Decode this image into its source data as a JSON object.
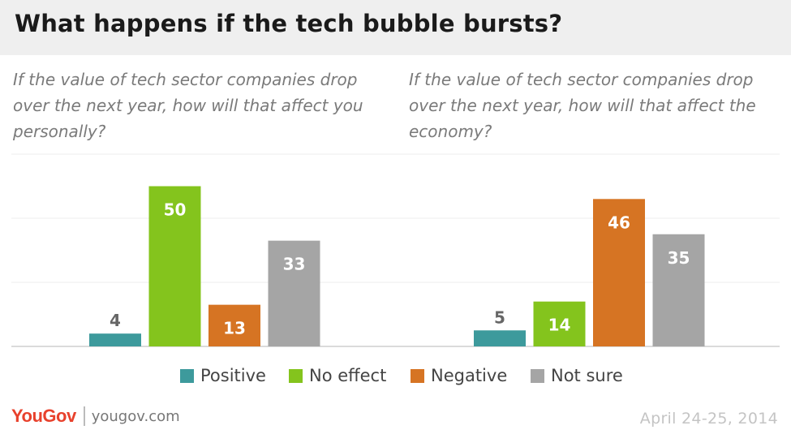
{
  "header": {
    "title": "What happens if the tech bubble bursts?"
  },
  "questions": {
    "left": "If the value of tech sector companies drop over the next year, how will that affect you personally?",
    "right": "If the value of tech sector companies drop over the next year, how will that affect the economy?"
  },
  "chart_data": {
    "type": "bar",
    "categories": [
      "Positive",
      "No effect",
      "Negative",
      "Not sure"
    ],
    "colors": [
      "#3d9a9c",
      "#84c41d",
      "#d67423",
      "#a5a5a5"
    ],
    "ylim": [
      0,
      60
    ],
    "grid": true,
    "legend": "bottom",
    "groups": [
      {
        "values": [
          4,
          50,
          13,
          33
        ]
      },
      {
        "values": [
          5,
          14,
          46,
          35
        ]
      }
    ]
  },
  "legend": {
    "items": [
      {
        "label": "Positive",
        "color": "#3d9a9c"
      },
      {
        "label": "No effect",
        "color": "#84c41d"
      },
      {
        "label": "Negative",
        "color": "#d67423"
      },
      {
        "label": "Not sure",
        "color": "#a5a5a5"
      }
    ]
  },
  "footer": {
    "logo": "YouGov",
    "site": "yougov.com",
    "date": "April 24-25, 2014"
  }
}
